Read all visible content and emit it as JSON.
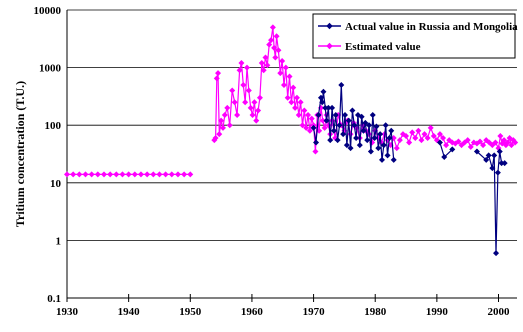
{
  "chart_data": {
    "type": "line",
    "title": "",
    "xlabel": "",
    "ylabel": "Tritium concentration (T.U.)",
    "yscale": "log",
    "xlim": [
      1930,
      2003
    ],
    "ylim": [
      0.1,
      10000
    ],
    "grid": "horizontal",
    "legend_position": "top-right",
    "x_ticks": [
      "1930",
      "1940",
      "1950",
      "1960",
      "1970",
      "1980",
      "1990",
      "2000"
    ],
    "y_ticks": [
      "0.1",
      "1",
      "10",
      "100",
      "1000",
      "10000"
    ],
    "series": [
      {
        "name": "Actual value in Russia and Mongolia",
        "color": "#000080",
        "marker": "diamond",
        "x": [
          1970.0,
          1970.4,
          1970.8,
          1971.2,
          1971.4,
          1971.6,
          1971.9,
          1972.1,
          1972.4,
          1972.7,
          1973.0,
          1973.3,
          1973.6,
          1973.9,
          1974.2,
          1974.5,
          1974.8,
          1975.1,
          1975.4,
          1975.7,
          1976.0,
          1976.3,
          1976.6,
          1976.9,
          1977.2,
          1977.5,
          1977.8,
          1978.1,
          1978.4,
          1978.7,
          1979.0,
          1979.3,
          1979.6,
          1979.9,
          1980.2,
          1980.5,
          1980.8,
          1981.1,
          1981.4,
          1981.7,
          1982.0,
          1982.3,
          1982.6,
          1983.0,
          1990.5,
          1991.2,
          1992.5,
          1996.5,
          1998.0,
          1998.4,
          1999.0,
          1999.3,
          1999.6,
          1999.9,
          2000.2,
          2000.5,
          2001.0
        ],
        "y": [
          90,
          50,
          150,
          300,
          250,
          380,
          200,
          120,
          200,
          55,
          200,
          80,
          150,
          55,
          100,
          500,
          70,
          150,
          45,
          120,
          40,
          180,
          100,
          60,
          150,
          45,
          140,
          80,
          110,
          55,
          100,
          35,
          150,
          60,
          95,
          40,
          70,
          25,
          45,
          100,
          30,
          60,
          80,
          25,
          50,
          28,
          38,
          35,
          25,
          30,
          18,
          30,
          0.6,
          15,
          35,
          22,
          22
        ]
      },
      {
        "name": "Estimated value",
        "color": "#FF00FF",
        "marker": "diamond",
        "x": [
          1930.0,
          1931.0,
          1932.0,
          1933.0,
          1934.0,
          1935.0,
          1936.0,
          1937.0,
          1938.0,
          1939.0,
          1940.0,
          1941.0,
          1942.0,
          1943.0,
          1944.0,
          1945.0,
          1946.0,
          1947.0,
          1948.0,
          1949.0,
          1950.0,
          1953.9,
          1954.1,
          1954.3,
          1954.5,
          1954.7,
          1955.0,
          1955.3,
          1955.6,
          1956.0,
          1956.4,
          1956.8,
          1957.2,
          1957.6,
          1958.0,
          1958.3,
          1958.6,
          1958.9,
          1959.2,
          1959.5,
          1959.8,
          1960.1,
          1960.4,
          1960.7,
          1961.0,
          1961.3,
          1961.6,
          1961.9,
          1962.2,
          1962.5,
          1962.8,
          1963.1,
          1963.4,
          1963.6,
          1963.8,
          1964.0,
          1964.3,
          1964.6,
          1964.9,
          1965.2,
          1965.5,
          1965.8,
          1966.1,
          1966.4,
          1966.7,
          1967.0,
          1967.3,
          1967.6,
          1967.9,
          1968.2,
          1968.5,
          1968.8,
          1969.1,
          1969.4,
          1969.7,
          1970.0,
          1970.3,
          1970.6,
          1970.9,
          1971.2,
          1971.5,
          1971.8,
          1972.1,
          1972.4,
          1972.7,
          1973.0,
          1973.5,
          1974.0,
          1974.5,
          1975.0,
          1975.5,
          1976.0,
          1976.5,
          1977.0,
          1977.5,
          1978.0,
          1978.5,
          1979.0,
          1979.5,
          1980.0,
          1980.5,
          1981.0,
          1981.5,
          1982.0,
          1982.5,
          1983.0,
          1983.5,
          1984.0,
          1984.5,
          1985.0,
          1985.5,
          1986.0,
          1986.5,
          1987.0,
          1987.5,
          1988.0,
          1988.5,
          1989.0,
          1989.5,
          1990.0,
          1990.5,
          1991.0,
          1991.5,
          1992.0,
          1992.5,
          1993.0,
          1993.5,
          1994.0,
          1994.5,
          1995.0,
          1995.5,
          1996.0,
          1996.5,
          1997.0,
          1997.5,
          1998.0,
          1998.5,
          1999.0,
          1999.5,
          2000.0,
          2000.3,
          2000.6,
          2000.9,
          2001.2,
          2001.5,
          2001.8,
          2002.1,
          2002.4,
          2002.7
        ],
        "y": [
          14,
          14,
          14,
          14,
          14,
          14,
          14,
          14,
          14,
          14,
          14,
          14,
          14,
          14,
          14,
          14,
          14,
          14,
          14,
          14,
          14,
          55,
          60,
          650,
          800,
          70,
          120,
          90,
          150,
          200,
          100,
          400,
          250,
          150,
          900,
          1200,
          500,
          250,
          1000,
          400,
          200,
          150,
          250,
          120,
          180,
          300,
          1200,
          900,
          1500,
          1100,
          2500,
          3000,
          5000,
          2200,
          1500,
          3500,
          2000,
          800,
          1300,
          500,
          1000,
          300,
          700,
          250,
          450,
          200,
          300,
          150,
          250,
          100,
          180,
          90,
          150,
          80,
          130,
          100,
          35,
          150,
          80,
          200,
          120,
          90,
          150,
          100,
          70,
          120,
          60,
          150,
          100,
          80,
          120,
          70,
          110,
          90,
          60,
          100,
          80,
          70,
          50,
          80,
          60,
          50,
          70,
          55,
          45,
          60,
          40,
          55,
          70,
          65,
          50,
          75,
          60,
          80,
          55,
          70,
          60,
          90,
          65,
          55,
          70,
          60,
          45,
          55,
          50,
          48,
          52,
          45,
          50,
          55,
          42,
          50,
          48,
          52,
          45,
          55,
          50,
          45,
          50,
          40,
          65,
          48,
          55,
          45,
          50,
          60,
          45,
          55,
          50
        ]
      }
    ]
  }
}
